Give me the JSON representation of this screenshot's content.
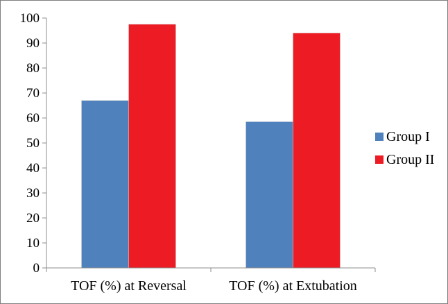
{
  "chart_data": {
    "type": "bar",
    "categories": [
      "TOF (%) at Reversal",
      "TOF (%) at Extubation"
    ],
    "series": [
      {
        "name": "Group I",
        "values": [
          67,
          58.5
        ],
        "color": "#4f81bd"
      },
      {
        "name": "Group II",
        "values": [
          97.5,
          94
        ],
        "color": "#ed1c24"
      }
    ],
    "ylim": [
      0,
      100
    ],
    "yticks": [
      0,
      10,
      20,
      30,
      40,
      50,
      60,
      70,
      80,
      90,
      100
    ],
    "grid": false,
    "legend_position": "right",
    "title": "",
    "xlabel": "",
    "ylabel": ""
  }
}
